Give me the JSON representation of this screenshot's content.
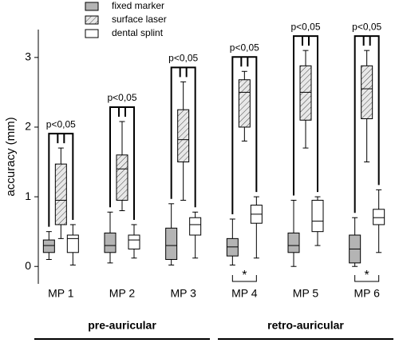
{
  "chart_data": {
    "type": "box",
    "ylabel": "accuracy (mm)",
    "categories": [
      "MP 1",
      "MP 2",
      "MP 3",
      "MP 4",
      "MP 5",
      "MP 6"
    ],
    "series": [
      {
        "name": "fixed marker",
        "color": "#b4b4b4",
        "hatch": false,
        "values": [
          [
            0.1,
            0.2,
            0.3,
            0.38,
            0.5
          ],
          [
            0.05,
            0.2,
            0.3,
            0.48,
            0.78
          ],
          [
            0.02,
            0.1,
            0.3,
            0.55,
            0.9
          ],
          [
            0.02,
            0.15,
            0.28,
            0.4,
            0.68
          ],
          [
            0,
            0.2,
            0.3,
            0.48,
            0.95
          ],
          [
            0,
            0.05,
            0.25,
            0.45,
            0.7
          ]
        ]
      },
      {
        "name": "surface laser",
        "color": "#ffffff",
        "hatch": true,
        "values": [
          [
            0.4,
            0.6,
            0.95,
            1.47,
            1.7
          ],
          [
            0.8,
            0.95,
            1.4,
            1.6,
            2.08
          ],
          [
            0.95,
            1.5,
            1.82,
            2.25,
            2.65
          ],
          [
            1.8,
            2.0,
            2.5,
            2.68,
            2.8
          ],
          [
            1.7,
            2.1,
            2.5,
            2.88,
            3.1
          ],
          [
            1.5,
            2.12,
            2.55,
            2.88,
            3.1
          ]
        ]
      },
      {
        "name": "dental splint",
        "color": "#ffffff",
        "hatch": false,
        "values": [
          [
            0.02,
            0.2,
            0.4,
            0.45,
            0.6
          ],
          [
            0.12,
            0.25,
            0.38,
            0.45,
            0.6
          ],
          [
            0.12,
            0.45,
            0.6,
            0.7,
            0.78
          ],
          [
            0.12,
            0.62,
            0.75,
            0.88,
            1.0
          ],
          [
            0.3,
            0.5,
            0.65,
            0.95,
            1.0
          ],
          [
            0.2,
            0.6,
            0.7,
            0.82,
            1.1
          ]
        ]
      }
    ],
    "top_annotations": [
      "p<0,05",
      "p<0,05",
      "p<0,05",
      "p<0,05",
      "p<0,05",
      "p<0,05"
    ],
    "bottom_annotations": [
      null,
      null,
      null,
      "*",
      null,
      "*"
    ],
    "category_groups": [
      {
        "label": "pre-auricular",
        "span": 3
      },
      {
        "label": "retro-auricular",
        "span": 3
      }
    ],
    "ylim": [
      -0.25,
      3.4
    ],
    "yticks": [
      0,
      1,
      2,
      3
    ],
    "grid": false
  }
}
